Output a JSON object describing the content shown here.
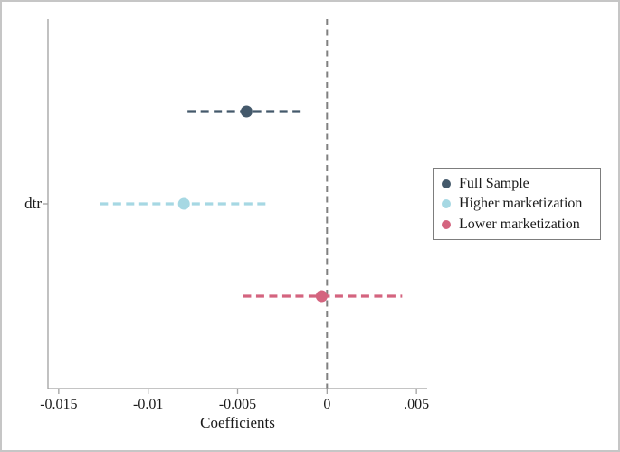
{
  "figure": {
    "background": "#ffffff",
    "border_color": "#c6c6c6"
  },
  "axis_style": {
    "line_color": "#a0a0a0",
    "text_color": "#1a1a1a"
  },
  "chart_data": {
    "type": "scatter",
    "subtype": "dot_whisker_coefficient_plot",
    "title": "",
    "xlabel": "Coefficients",
    "ylabel": "dtr",
    "xlim": [
      -0.0156,
      0.0056
    ],
    "grid": false,
    "x_ticks": [
      {
        "value": -0.015,
        "label": "-0.015"
      },
      {
        "value": -0.01,
        "label": "-0.01"
      },
      {
        "value": -0.005,
        "label": "-0.005"
      },
      {
        "value": 0,
        "label": "0"
      },
      {
        "value": 0.005,
        "label": ".005"
      }
    ],
    "zero_line": {
      "value": 0,
      "color": "#808080",
      "style": "dashed"
    },
    "categories": [
      "dtr"
    ],
    "series": [
      {
        "name": "Full Sample",
        "color": "#44596b",
        "estimate": -0.0045,
        "ci_low": -0.0078,
        "ci_high": -0.0012,
        "row_fraction": 0.25
      },
      {
        "name": "Higher marketization",
        "color": "#a6d8e3",
        "estimate": -0.008,
        "ci_low": -0.0127,
        "ci_high": -0.0032,
        "row_fraction": 0.5
      },
      {
        "name": "Lower marketization",
        "color": "#d4647f",
        "estimate": -0.0003,
        "ci_low": -0.0047,
        "ci_high": 0.0042,
        "row_fraction": 0.75
      }
    ],
    "legend": {
      "position": "right",
      "border_color": "#7d7d7d",
      "entries": [
        "Full Sample",
        "Higher marketization",
        "Lower marketization"
      ]
    }
  }
}
